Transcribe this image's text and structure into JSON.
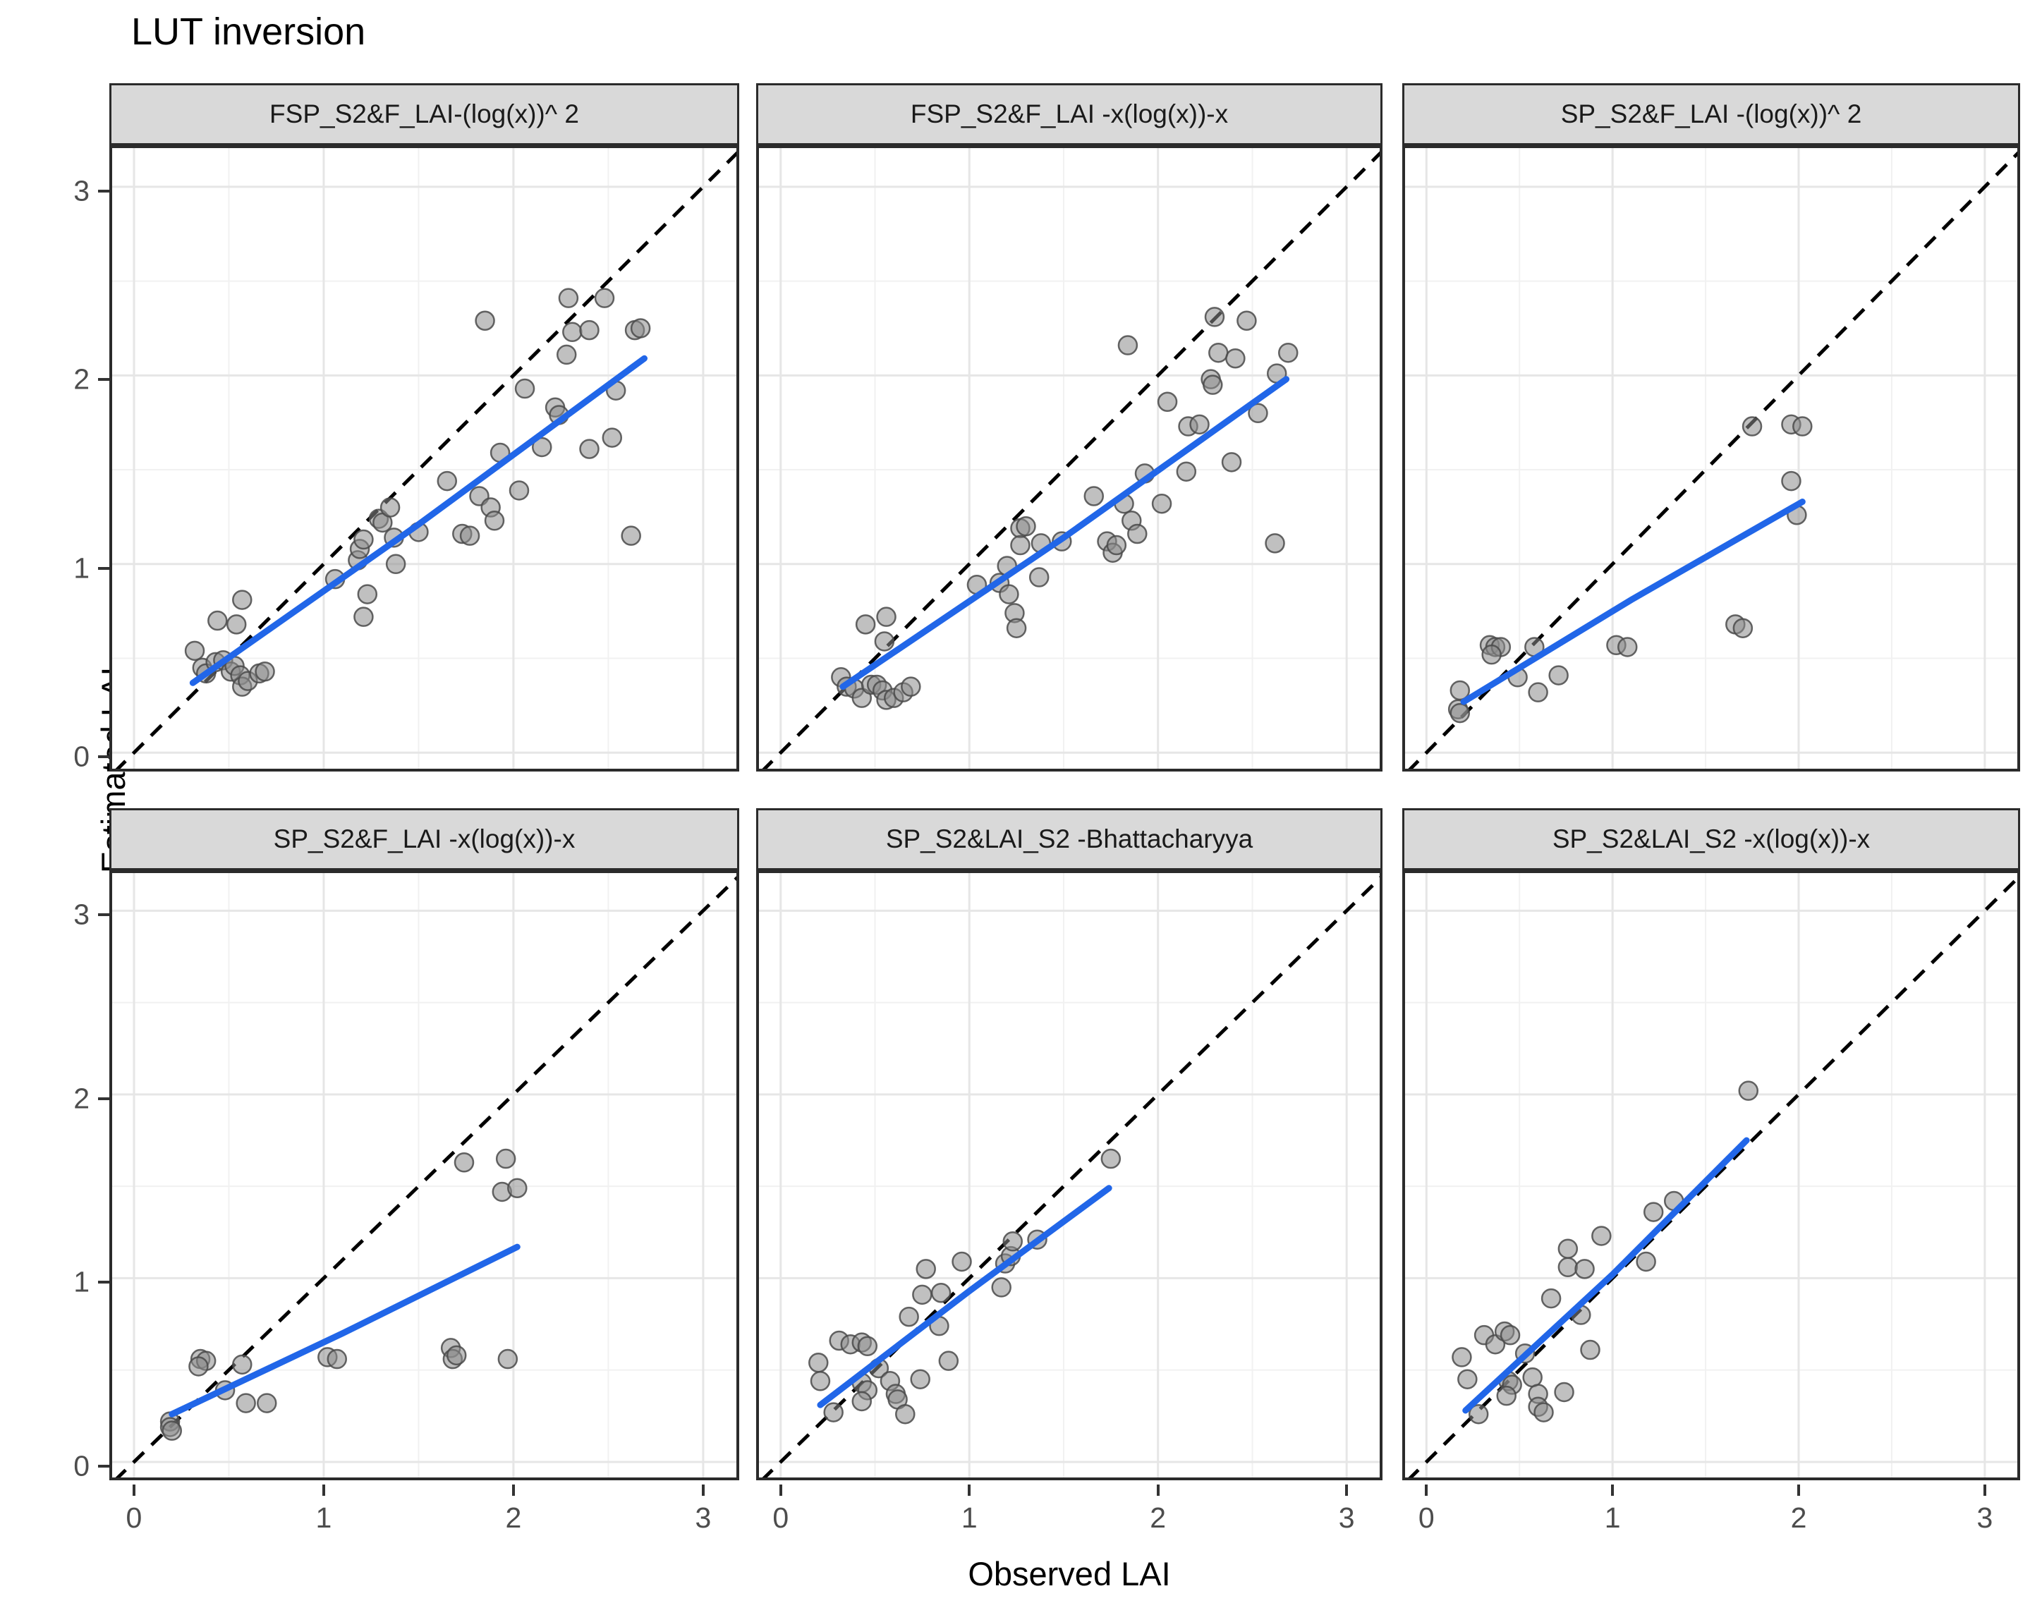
{
  "title": "LUT inversion",
  "x_axis": {
    "label": "Observed LAI",
    "ticks": [
      "0",
      "1",
      "2",
      "3"
    ],
    "range": [
      0,
      3
    ]
  },
  "y_axis": {
    "label": "Estimated LAI",
    "ticks": [
      "0",
      "1",
      "2",
      "3"
    ],
    "range": [
      0,
      3
    ]
  },
  "colors": {
    "trend_line": "#2166E8",
    "identity_line": "#000000",
    "point_fill": "#8c8c8c",
    "point_stroke": "#4a4a4a",
    "strip_background": "#d9d9d9",
    "panel_border": "#2b2b2b",
    "grid_major": "#e6e6e6",
    "grid_minor": "#f1f1f1",
    "tick_label": "#4d4d4d"
  },
  "chart_data": [
    {
      "type": "scatter",
      "label": "FSP_S2&F_LAI-(log(x))^ 2",
      "xlabel": "Observed LAI",
      "ylabel": "Estimated LAI",
      "xlim": [
        0,
        3
      ],
      "ylim": [
        0,
        3
      ],
      "identity_line": true,
      "points": [
        [
          0.32,
          0.54
        ],
        [
          0.36,
          0.45
        ],
        [
          0.38,
          0.42
        ],
        [
          0.43,
          0.48
        ],
        [
          0.47,
          0.49
        ],
        [
          0.51,
          0.43
        ],
        [
          0.53,
          0.46
        ],
        [
          0.56,
          0.41
        ],
        [
          0.57,
          0.35
        ],
        [
          0.6,
          0.38
        ],
        [
          0.66,
          0.42
        ],
        [
          0.69,
          0.43
        ],
        [
          0.44,
          0.7
        ],
        [
          0.54,
          0.68
        ],
        [
          0.57,
          0.81
        ],
        [
          1.06,
          0.92
        ],
        [
          1.18,
          1.02
        ],
        [
          1.19,
          1.08
        ],
        [
          1.21,
          1.13
        ],
        [
          1.23,
          0.84
        ],
        [
          1.21,
          0.72
        ],
        [
          1.29,
          1.24
        ],
        [
          1.31,
          1.22
        ],
        [
          1.35,
          1.3
        ],
        [
          1.37,
          1.14
        ],
        [
          1.38,
          1.0
        ],
        [
          1.5,
          1.17
        ],
        [
          1.65,
          1.44
        ],
        [
          1.73,
          1.16
        ],
        [
          1.77,
          1.15
        ],
        [
          1.82,
          1.36
        ],
        [
          1.85,
          2.29
        ],
        [
          1.88,
          1.3
        ],
        [
          1.9,
          1.23
        ],
        [
          1.93,
          1.59
        ],
        [
          2.03,
          1.39
        ],
        [
          2.06,
          1.93
        ],
        [
          2.15,
          1.62
        ],
        [
          2.22,
          1.83
        ],
        [
          2.24,
          1.79
        ],
        [
          2.28,
          2.11
        ],
        [
          2.29,
          2.41
        ],
        [
          2.31,
          2.23
        ],
        [
          2.4,
          2.24
        ],
        [
          2.4,
          1.61
        ],
        [
          2.48,
          2.41
        ],
        [
          2.52,
          1.67
        ],
        [
          2.54,
          1.92
        ],
        [
          2.64,
          2.24
        ],
        [
          2.67,
          2.25
        ],
        [
          2.62,
          1.15
        ]
      ],
      "trend": [
        [
          0.31,
          0.37
        ],
        [
          1.5,
          1.21
        ],
        [
          2.69,
          2.09
        ]
      ]
    },
    {
      "type": "scatter",
      "label": "FSP_S2&F_LAI -x(log(x))-x",
      "xlabel": "Observed LAI",
      "ylabel": "Estimated LAI",
      "xlim": [
        0,
        3
      ],
      "ylim": [
        0,
        3
      ],
      "identity_line": true,
      "points": [
        [
          0.32,
          0.4
        ],
        [
          0.35,
          0.35
        ],
        [
          0.39,
          0.34
        ],
        [
          0.43,
          0.29
        ],
        [
          0.48,
          0.36
        ],
        [
          0.51,
          0.36
        ],
        [
          0.54,
          0.33
        ],
        [
          0.56,
          0.28
        ],
        [
          0.6,
          0.29
        ],
        [
          0.65,
          0.32
        ],
        [
          0.69,
          0.35
        ],
        [
          0.45,
          0.68
        ],
        [
          0.56,
          0.72
        ],
        [
          0.55,
          0.59
        ],
        [
          1.04,
          0.89
        ],
        [
          1.16,
          0.9
        ],
        [
          1.2,
          0.99
        ],
        [
          1.21,
          0.84
        ],
        [
          1.24,
          0.74
        ],
        [
          1.25,
          0.66
        ],
        [
          1.27,
          1.19
        ],
        [
          1.3,
          1.2
        ],
        [
          1.27,
          1.1
        ],
        [
          1.37,
          0.93
        ],
        [
          1.38,
          1.11
        ],
        [
          1.49,
          1.12
        ],
        [
          1.66,
          1.36
        ],
        [
          1.73,
          1.12
        ],
        [
          1.76,
          1.06
        ],
        [
          1.78,
          1.1
        ],
        [
          1.82,
          1.32
        ],
        [
          1.84,
          2.16
        ],
        [
          1.86,
          1.23
        ],
        [
          1.89,
          1.16
        ],
        [
          1.93,
          1.48
        ],
        [
          2.02,
          1.32
        ],
        [
          2.05,
          1.86
        ],
        [
          2.15,
          1.49
        ],
        [
          2.16,
          1.73
        ],
        [
          2.22,
          1.74
        ],
        [
          2.28,
          1.98
        ],
        [
          2.29,
          1.95
        ],
        [
          2.3,
          2.31
        ],
        [
          2.32,
          2.12
        ],
        [
          2.41,
          2.09
        ],
        [
          2.39,
          1.54
        ],
        [
          2.47,
          2.29
        ],
        [
          2.53,
          1.8
        ],
        [
          2.62,
          1.11
        ],
        [
          2.63,
          2.01
        ],
        [
          2.69,
          2.12
        ]
      ],
      "trend": [
        [
          0.33,
          0.35
        ],
        [
          1.5,
          1.14
        ],
        [
          2.68,
          1.98
        ]
      ]
    },
    {
      "type": "scatter",
      "label": "SP_S2&F_LAI -(log(x))^ 2",
      "xlabel": "Observed LAI",
      "ylabel": "Estimated LAI",
      "xlim": [
        0,
        3
      ],
      "ylim": [
        0,
        3
      ],
      "identity_line": true,
      "points": [
        [
          0.18,
          0.33
        ],
        [
          0.17,
          0.23
        ],
        [
          0.18,
          0.21
        ],
        [
          0.34,
          0.57
        ],
        [
          0.37,
          0.56
        ],
        [
          0.4,
          0.56
        ],
        [
          0.35,
          0.52
        ],
        [
          0.49,
          0.4
        ],
        [
          0.58,
          0.56
        ],
        [
          0.6,
          0.32
        ],
        [
          0.71,
          0.41
        ],
        [
          1.02,
          0.57
        ],
        [
          1.08,
          0.56
        ],
        [
          1.66,
          0.68
        ],
        [
          1.7,
          0.66
        ],
        [
          1.75,
          1.73
        ],
        [
          1.96,
          1.74
        ],
        [
          2.02,
          1.73
        ],
        [
          1.96,
          1.44
        ],
        [
          1.99,
          1.26
        ]
      ],
      "trend": [
        [
          0.2,
          0.27
        ],
        [
          1.1,
          0.81
        ],
        [
          2.02,
          1.33
        ]
      ]
    },
    {
      "type": "scatter",
      "label": "SP_S2&F_LAI -x(log(x))-x",
      "xlabel": "Observed LAI",
      "ylabel": "Estimated LAI",
      "xlim": [
        0,
        3
      ],
      "ylim": [
        0,
        3
      ],
      "identity_line": true,
      "points": [
        [
          0.19,
          0.22
        ],
        [
          0.19,
          0.19
        ],
        [
          0.2,
          0.17
        ],
        [
          0.35,
          0.56
        ],
        [
          0.38,
          0.55
        ],
        [
          0.34,
          0.52
        ],
        [
          0.48,
          0.39
        ],
        [
          0.57,
          0.53
        ],
        [
          0.59,
          0.32
        ],
        [
          0.7,
          0.32
        ],
        [
          1.02,
          0.57
        ],
        [
          1.07,
          0.56
        ],
        [
          1.67,
          0.62
        ],
        [
          1.68,
          0.56
        ],
        [
          1.7,
          0.58
        ],
        [
          1.74,
          1.63
        ],
        [
          1.96,
          1.65
        ],
        [
          1.94,
          1.47
        ],
        [
          2.02,
          1.49
        ],
        [
          1.97,
          0.56
        ]
      ],
      "trend": [
        [
          0.2,
          0.26
        ],
        [
          1.1,
          0.7
        ],
        [
          2.02,
          1.17
        ]
      ]
    },
    {
      "type": "scatter",
      "label": "SP_S2&LAI_S2 -Bhattacharyya",
      "xlabel": "Observed LAI",
      "ylabel": "Estimated LAI",
      "xlim": [
        0,
        3
      ],
      "ylim": [
        0,
        3
      ],
      "identity_line": true,
      "points": [
        [
          0.2,
          0.54
        ],
        [
          0.21,
          0.44
        ],
        [
          0.28,
          0.27
        ],
        [
          0.31,
          0.66
        ],
        [
          0.37,
          0.64
        ],
        [
          0.43,
          0.65
        ],
        [
          0.46,
          0.63
        ],
        [
          0.43,
          0.43
        ],
        [
          0.46,
          0.39
        ],
        [
          0.43,
          0.33
        ],
        [
          0.52,
          0.51
        ],
        [
          0.58,
          0.44
        ],
        [
          0.61,
          0.37
        ],
        [
          0.62,
          0.34
        ],
        [
          0.66,
          0.26
        ],
        [
          0.68,
          0.79
        ],
        [
          0.75,
          0.91
        ],
        [
          0.77,
          1.05
        ],
        [
          0.85,
          0.92
        ],
        [
          0.84,
          0.74
        ],
        [
          0.89,
          0.55
        ],
        [
          0.74,
          0.45
        ],
        [
          0.96,
          1.09
        ],
        [
          1.17,
          0.95
        ],
        [
          1.19,
          1.08
        ],
        [
          1.22,
          1.12
        ],
        [
          1.23,
          1.2
        ],
        [
          1.36,
          1.21
        ],
        [
          1.75,
          1.65
        ]
      ],
      "trend": [
        [
          0.21,
          0.31
        ],
        [
          1.0,
          0.93
        ],
        [
          1.74,
          1.49
        ]
      ]
    },
    {
      "type": "scatter",
      "label": "SP_S2&LAI_S2 -x(log(x))-x",
      "xlabel": "Observed LAI",
      "ylabel": "Estimated LAI",
      "xlim": [
        0,
        3
      ],
      "ylim": [
        0,
        3
      ],
      "identity_line": true,
      "points": [
        [
          0.19,
          0.57
        ],
        [
          0.22,
          0.45
        ],
        [
          0.28,
          0.26
        ],
        [
          0.31,
          0.69
        ],
        [
          0.37,
          0.64
        ],
        [
          0.42,
          0.71
        ],
        [
          0.45,
          0.69
        ],
        [
          0.44,
          0.44
        ],
        [
          0.46,
          0.42
        ],
        [
          0.43,
          0.36
        ],
        [
          0.53,
          0.59
        ],
        [
          0.57,
          0.46
        ],
        [
          0.6,
          0.37
        ],
        [
          0.6,
          0.3
        ],
        [
          0.63,
          0.27
        ],
        [
          0.67,
          0.89
        ],
        [
          0.74,
          0.38
        ],
        [
          0.76,
          1.16
        ],
        [
          0.76,
          1.06
        ],
        [
          0.85,
          1.05
        ],
        [
          0.83,
          0.8
        ],
        [
          0.88,
          0.61
        ],
        [
          0.94,
          1.23
        ],
        [
          1.18,
          1.09
        ],
        [
          1.22,
          1.36
        ],
        [
          1.33,
          1.42
        ],
        [
          1.73,
          2.02
        ]
      ],
      "trend": [
        [
          0.21,
          0.28
        ],
        [
          1.0,
          1.02
        ],
        [
          1.72,
          1.75
        ]
      ]
    }
  ]
}
